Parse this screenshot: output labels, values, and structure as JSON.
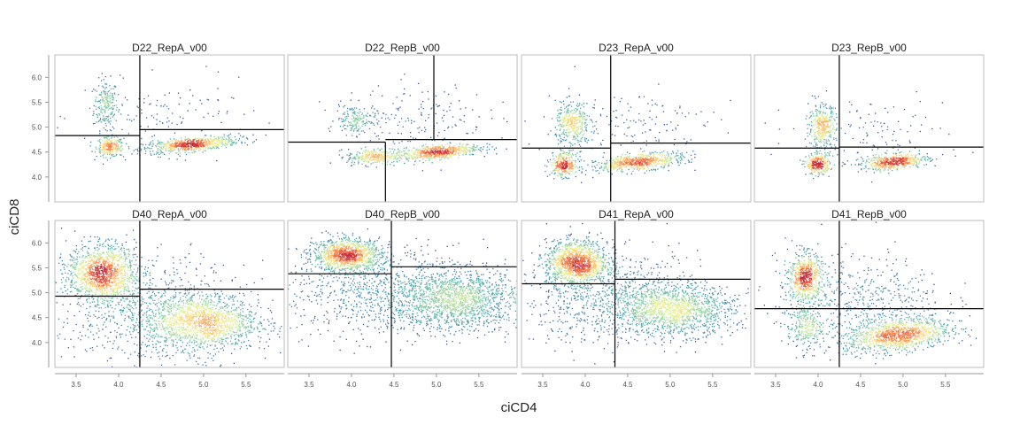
{
  "chart_data": {
    "type": "scatter",
    "xlabel": "ciCD4",
    "ylabel": "ciCD8",
    "xlim": [
      3.25,
      5.95
    ],
    "ylim": [
      3.5,
      6.45
    ],
    "x_ticks": [
      "3.5",
      "4.0",
      "4.5",
      "5.0",
      "5.5"
    ],
    "x_tick_values": [
      3.5,
      4.0,
      4.5,
      5.0,
      5.5
    ],
    "y_ticks": [
      "4.0",
      "4.5",
      "5.0",
      "5.5",
      "6.0"
    ],
    "y_tick_values": [
      4.0,
      4.5,
      5.0,
      5.5,
      6.0
    ],
    "density_colors": [
      "#3f3f8c",
      "#3f7fb0",
      "#4fa7b0",
      "#8fd0a4",
      "#e6f49a",
      "#fdd07a",
      "#f57a48",
      "#c42a3c"
    ],
    "panels": [
      {
        "title": "D22_RepA_v00",
        "gate": {
          "x": 4.25,
          "y_left": 4.83,
          "y_right": 4.95
        },
        "populations": [
          {
            "x": 3.85,
            "y": 5.45,
            "sx": 0.07,
            "sy": 0.25,
            "n": 220
          },
          {
            "x": 3.9,
            "y": 4.6,
            "sx": 0.08,
            "sy": 0.1,
            "n": 260
          },
          {
            "x": 4.85,
            "y": 4.65,
            "sx": 0.28,
            "sy": 0.08,
            "n": 700,
            "rho": 0.55
          },
          {
            "x": 4.6,
            "y": 5.2,
            "sx": 0.5,
            "sy": 0.35,
            "n": 120
          }
        ]
      },
      {
        "title": "D22_RepB_v00",
        "gate": {
          "x": 4.4,
          "x_top": 4.97,
          "y_left": 4.7,
          "y_right": 4.75
        },
        "populations": [
          {
            "x": 4.05,
            "y": 5.15,
            "sx": 0.12,
            "sy": 0.15,
            "n": 180
          },
          {
            "x": 4.25,
            "y": 4.4,
            "sx": 0.15,
            "sy": 0.08,
            "n": 300
          },
          {
            "x": 5.0,
            "y": 4.5,
            "sx": 0.25,
            "sy": 0.08,
            "n": 650,
            "rho": 0.5
          },
          {
            "x": 4.8,
            "y": 5.2,
            "sx": 0.4,
            "sy": 0.35,
            "n": 160
          }
        ]
      },
      {
        "title": "D23_RepA_v00",
        "gate": {
          "x": 4.3,
          "y_left": 4.58,
          "y_right": 4.68
        },
        "populations": [
          {
            "x": 3.85,
            "y": 5.05,
            "sx": 0.1,
            "sy": 0.22,
            "n": 380
          },
          {
            "x": 3.75,
            "y": 4.25,
            "sx": 0.08,
            "sy": 0.12,
            "n": 330
          },
          {
            "x": 4.65,
            "y": 4.3,
            "sx": 0.25,
            "sy": 0.09,
            "n": 620,
            "rho": 0.5
          },
          {
            "x": 4.5,
            "y": 5.0,
            "sx": 0.5,
            "sy": 0.4,
            "n": 170
          }
        ]
      },
      {
        "title": "D23_RepB_v00",
        "gate": {
          "x": 4.25,
          "y_left": 4.58,
          "y_right": 4.6
        },
        "populations": [
          {
            "x": 4.05,
            "y": 5.0,
            "sx": 0.08,
            "sy": 0.22,
            "n": 380
          },
          {
            "x": 4.0,
            "y": 4.25,
            "sx": 0.07,
            "sy": 0.1,
            "n": 300
          },
          {
            "x": 4.9,
            "y": 4.3,
            "sx": 0.2,
            "sy": 0.08,
            "n": 520,
            "rho": 0.4
          },
          {
            "x": 4.6,
            "y": 4.9,
            "sx": 0.45,
            "sy": 0.35,
            "n": 130
          }
        ]
      },
      {
        "title": "D40_RepA_v00",
        "gate": {
          "x": 4.25,
          "y_left": 4.93,
          "y_right": 5.07
        },
        "populations": [
          {
            "x": 3.8,
            "y": 5.4,
            "sx": 0.2,
            "sy": 0.28,
            "n": 1300
          },
          {
            "x": 5.0,
            "y": 4.4,
            "sx": 0.32,
            "sy": 0.28,
            "n": 1300
          },
          {
            "x": 4.4,
            "y": 4.6,
            "sx": 0.55,
            "sy": 0.5,
            "n": 900
          }
        ]
      },
      {
        "title": "D40_RepB_v00",
        "gate": {
          "x": 4.47,
          "y_left": 5.38,
          "y_right": 5.52
        },
        "populations": [
          {
            "x": 3.95,
            "y": 5.75,
            "sx": 0.2,
            "sy": 0.16,
            "n": 1200
          },
          {
            "x": 5.25,
            "y": 4.85,
            "sx": 0.38,
            "sy": 0.3,
            "n": 1400
          },
          {
            "x": 4.4,
            "y": 5.0,
            "sx": 0.6,
            "sy": 0.45,
            "n": 900
          }
        ]
      },
      {
        "title": "D41_RepA_v00",
        "gate": {
          "x": 4.35,
          "y_left": 5.18,
          "y_right": 5.27
        },
        "populations": [
          {
            "x": 3.9,
            "y": 5.6,
            "sx": 0.18,
            "sy": 0.22,
            "n": 1300
          },
          {
            "x": 5.05,
            "y": 4.65,
            "sx": 0.35,
            "sy": 0.25,
            "n": 1300
          },
          {
            "x": 4.3,
            "y": 4.9,
            "sx": 0.55,
            "sy": 0.45,
            "n": 900
          }
        ]
      },
      {
        "title": "D41_RepB_v00",
        "gate": {
          "x": 4.25,
          "y_left": 4.68,
          "y_right": 4.68
        },
        "populations": [
          {
            "x": 3.85,
            "y": 5.3,
            "sx": 0.1,
            "sy": 0.25,
            "n": 650
          },
          {
            "x": 4.95,
            "y": 4.15,
            "sx": 0.3,
            "sy": 0.17,
            "n": 1100,
            "rho": 0.3
          },
          {
            "x": 3.85,
            "y": 4.3,
            "sx": 0.1,
            "sy": 0.2,
            "n": 250
          },
          {
            "x": 4.5,
            "y": 4.8,
            "sx": 0.5,
            "sy": 0.45,
            "n": 600
          }
        ]
      }
    ]
  }
}
